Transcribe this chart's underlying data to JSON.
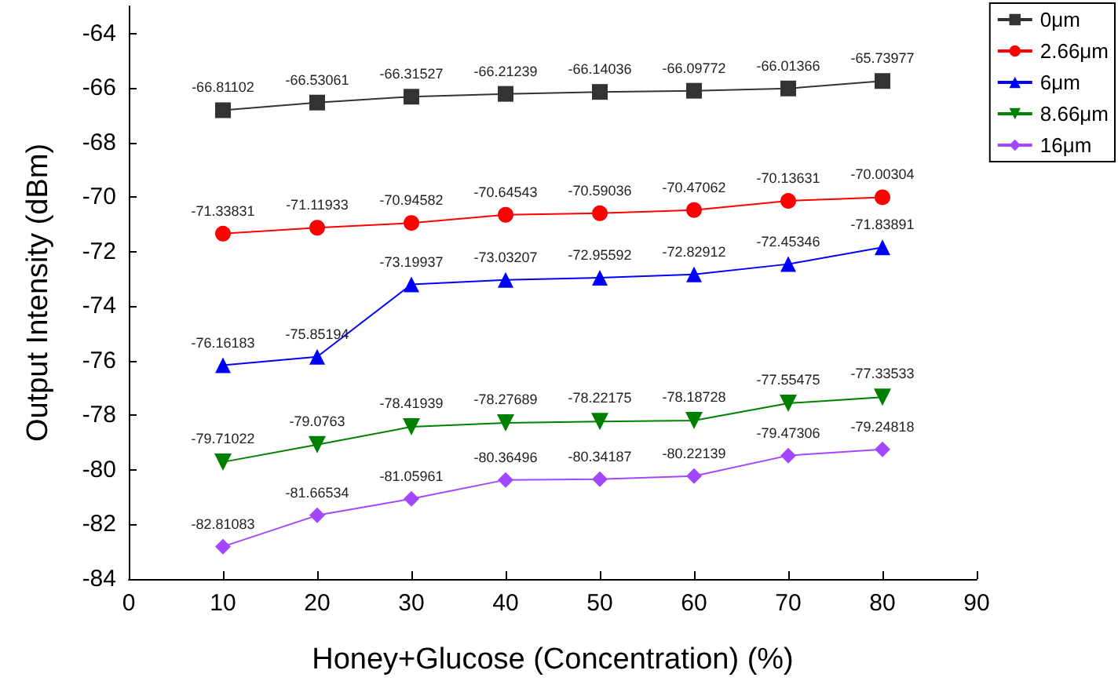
{
  "chart_data": {
    "type": "line",
    "xlabel": "Honey+Glucose (Concentration) (%)",
    "ylabel": "Output Intensity (dBm)",
    "x": [
      10,
      20,
      30,
      40,
      50,
      60,
      70,
      80
    ],
    "series": [
      {
        "name": "0μm",
        "color": "#333333",
        "marker": "square",
        "values": [
          -66.81102,
          -66.53061,
          -66.31527,
          -66.21239,
          -66.14036,
          -66.09772,
          -66.01366,
          -65.73977
        ]
      },
      {
        "name": "2.66μm",
        "color": "#ff0000",
        "marker": "circle",
        "values": [
          -71.33831,
          -71.11933,
          -70.94582,
          -70.64543,
          -70.59036,
          -70.47062,
          -70.13631,
          -70.00304
        ]
      },
      {
        "name": "6μm",
        "color": "#0000ff",
        "marker": "triangle",
        "values": [
          -76.16183,
          -75.85194,
          -73.19937,
          -73.03207,
          -72.95592,
          -72.82912,
          -72.45346,
          -71.83891
        ]
      },
      {
        "name": "8.66μm",
        "color": "#008000",
        "marker": "triangle-down",
        "values": [
          -79.71022,
          -79.0763,
          -78.41939,
          -78.27689,
          -78.22175,
          -78.18728,
          -77.55475,
          -77.33533
        ]
      },
      {
        "name": "16μm",
        "color": "#a346ff",
        "marker": "diamond",
        "values": [
          -82.81083,
          -81.66534,
          -81.05961,
          -80.36496,
          -80.34187,
          -80.22139,
          -79.47306,
          -79.24818
        ]
      }
    ],
    "xlim": [
      0,
      90
    ],
    "xticks": [
      0,
      10,
      20,
      30,
      40,
      50,
      60,
      70,
      80,
      90
    ],
    "ylim": [
      -84,
      -63
    ],
    "yticks": [
      -84,
      -82,
      -80,
      -78,
      -76,
      -74,
      -72,
      -70,
      -68,
      -66,
      -64
    ],
    "grid": false,
    "legend": "top right",
    "data_labels": true,
    "line_style": "solid"
  }
}
